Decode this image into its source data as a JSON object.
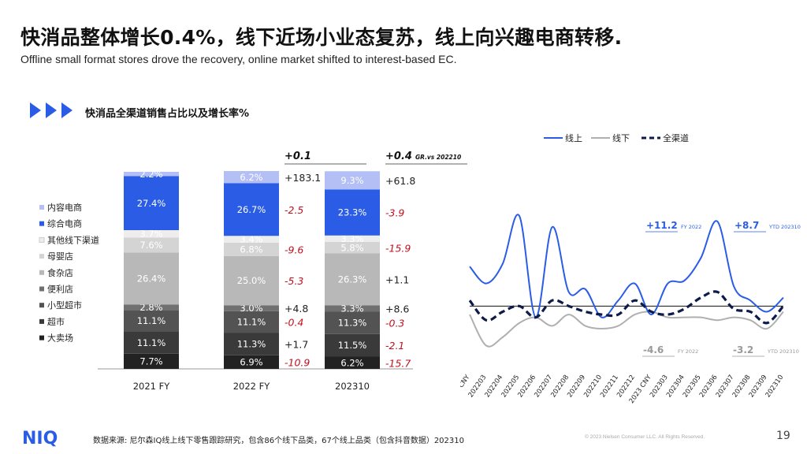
{
  "header": {
    "title": "快消品整体增长0.4%，线下近场小业态复苏，线上向兴趣电商转移.",
    "subtitle": "Offline small format stores drove the recovery, online market shifted to interest-based EC.",
    "section_title": "快消品全渠道销售占比以及增长率%"
  },
  "footer": {
    "source": "数据来源: 尼尔森IQ线上线下零售跟踪研究，包含86个线下品类，67个线上品类（包含抖音数据）202310",
    "copyright": "© 2023 Nielsen Consumer LLC. All Rights Reserved.",
    "page_number": "19",
    "logo_text": "NIQ"
  },
  "colors": {
    "accent_blue": "#2a5ce6",
    "negative_red": "#c0111f",
    "arrow_blue": "#2a5ce6"
  },
  "chart_data": [
    {
      "type": "bar",
      "stacked": true,
      "title": "快消品全渠道销售占比以及增长率%",
      "categories": [
        "2021 FY",
        "2022 FY",
        "202310"
      ],
      "series": [
        {
          "name": "大卖场",
          "color": "#222222",
          "values": [
            7.7,
            6.9,
            6.2
          ],
          "labels": [
            "7.7%",
            "6.9%",
            "6.2%"
          ]
        },
        {
          "name": "超市",
          "color": "#3a3a3a",
          "values": [
            11.1,
            11.3,
            11.5
          ],
          "labels": [
            "11.1%",
            "11.3%",
            "11.5%"
          ]
        },
        {
          "name": "小型超市",
          "color": "#535353",
          "values": [
            11.1,
            11.1,
            11.3
          ],
          "labels": [
            "11.1%",
            "11.1%",
            "11.3%"
          ]
        },
        {
          "name": "便利店",
          "color": "#707070",
          "values": [
            2.8,
            3.0,
            3.3
          ],
          "labels": [
            "2.8%",
            "3.0%",
            "3.3%"
          ]
        },
        {
          "name": "食杂店",
          "color": "#b8b8b8",
          "values": [
            26.4,
            25.0,
            26.3
          ],
          "labels": [
            "26.4%",
            "25.0%",
            "26.3%"
          ]
        },
        {
          "name": "母婴店",
          "color": "#d4d4d4",
          "values": [
            7.6,
            6.8,
            5.8
          ],
          "labels": [
            "7.6%",
            "6.8%",
            "5.8%"
          ]
        },
        {
          "name": "其他线下渠道",
          "color": "#ededed",
          "values": [
            3.7,
            3.4,
            3.3
          ],
          "labels": [
            "3.7%",
            "3.4%",
            "3.3%"
          ]
        },
        {
          "name": "综合电商",
          "color": "#2a5ce6",
          "values": [
            27.4,
            26.7,
            23.3
          ],
          "labels": [
            "27.4%",
            "26.7%",
            "23.3%"
          ]
        },
        {
          "name": "内容电商",
          "color": "#b3bff5",
          "values": [
            2.2,
            6.2,
            9.3
          ],
          "labels": [
            "2.2%",
            "6.2%",
            "9.3%"
          ]
        }
      ],
      "legend_order": [
        "内容电商",
        "综合电商",
        "其他线下渠道",
        "母婴店",
        "食杂店",
        "便利店",
        "小型超市",
        "超市",
        "大卖场"
      ],
      "growth_columns": [
        {
          "header": "+0.1",
          "header_note": "",
          "values": [
            "+183.1",
            "-2.5",
            "-9.6",
            "-5.3",
            "+4.8",
            "-0.4",
            "+1.7",
            "-10.9"
          ],
          "series_for_row": [
            "内容电商",
            "综合电商",
            "母婴店",
            "食杂店",
            "便利店",
            "小型超市",
            "超市",
            "大卖场"
          ]
        },
        {
          "header": "+0.4",
          "header_note": "GR.vs 202210",
          "values": [
            "+61.8",
            "-3.9",
            "-15.9",
            "+1.1",
            "+8.6",
            "-0.3",
            "-2.1",
            "-15.7"
          ],
          "series_for_row": [
            "内容电商",
            "综合电商",
            "母婴店",
            "食杂店",
            "便利店",
            "小型超市",
            "超市",
            "大卖场"
          ]
        }
      ],
      "ylim": [
        0,
        100
      ]
    },
    {
      "type": "line",
      "x": [
        "2022 CNY",
        "202203",
        "202204",
        "202205",
        "202206",
        "202207",
        "202208",
        "202209",
        "202210",
        "202211",
        "202212",
        "2023 CNY",
        "202303",
        "202304",
        "202305",
        "202306",
        "202307",
        "202308",
        "202309",
        "202310"
      ],
      "series": [
        {
          "name": "线上",
          "color": "#2a5ce6",
          "style": "solid",
          "values": [
            14,
            8,
            15,
            32,
            -4,
            28,
            5,
            6,
            -4,
            2,
            8,
            -3,
            8,
            9,
            17,
            30,
            7,
            2,
            -2,
            3
          ]
        },
        {
          "name": "线下",
          "color": "#b0b0b0",
          "style": "solid",
          "values": [
            -3,
            -14,
            -11,
            -6,
            -4,
            -7,
            -3,
            -7,
            -8,
            -7,
            -3,
            -2,
            -4,
            -4,
            -4,
            -5,
            -4,
            -5,
            -8,
            -2
          ]
        },
        {
          "name": "全渠道",
          "color": "#0d1b4a",
          "style": "dashed",
          "values": [
            2,
            -5,
            -2,
            0,
            -4,
            2,
            0,
            -2,
            -3,
            -3,
            2,
            -2,
            -3,
            -1,
            3,
            5,
            -1,
            -2,
            -6,
            0
          ]
        }
      ],
      "annotations": [
        {
          "value": "+11.2",
          "note": "FY 2022",
          "color": "#2a5ce6"
        },
        {
          "value": "+8.7",
          "note": "YTD 202310",
          "color": "#2a5ce6"
        },
        {
          "value": "-4.6",
          "note": "FY 2022",
          "color": "#999999"
        },
        {
          "value": "-3.2",
          "note": "YTD 202310",
          "color": "#999999"
        }
      ],
      "legend_position": "top",
      "ylim": [
        -20,
        40
      ]
    }
  ]
}
